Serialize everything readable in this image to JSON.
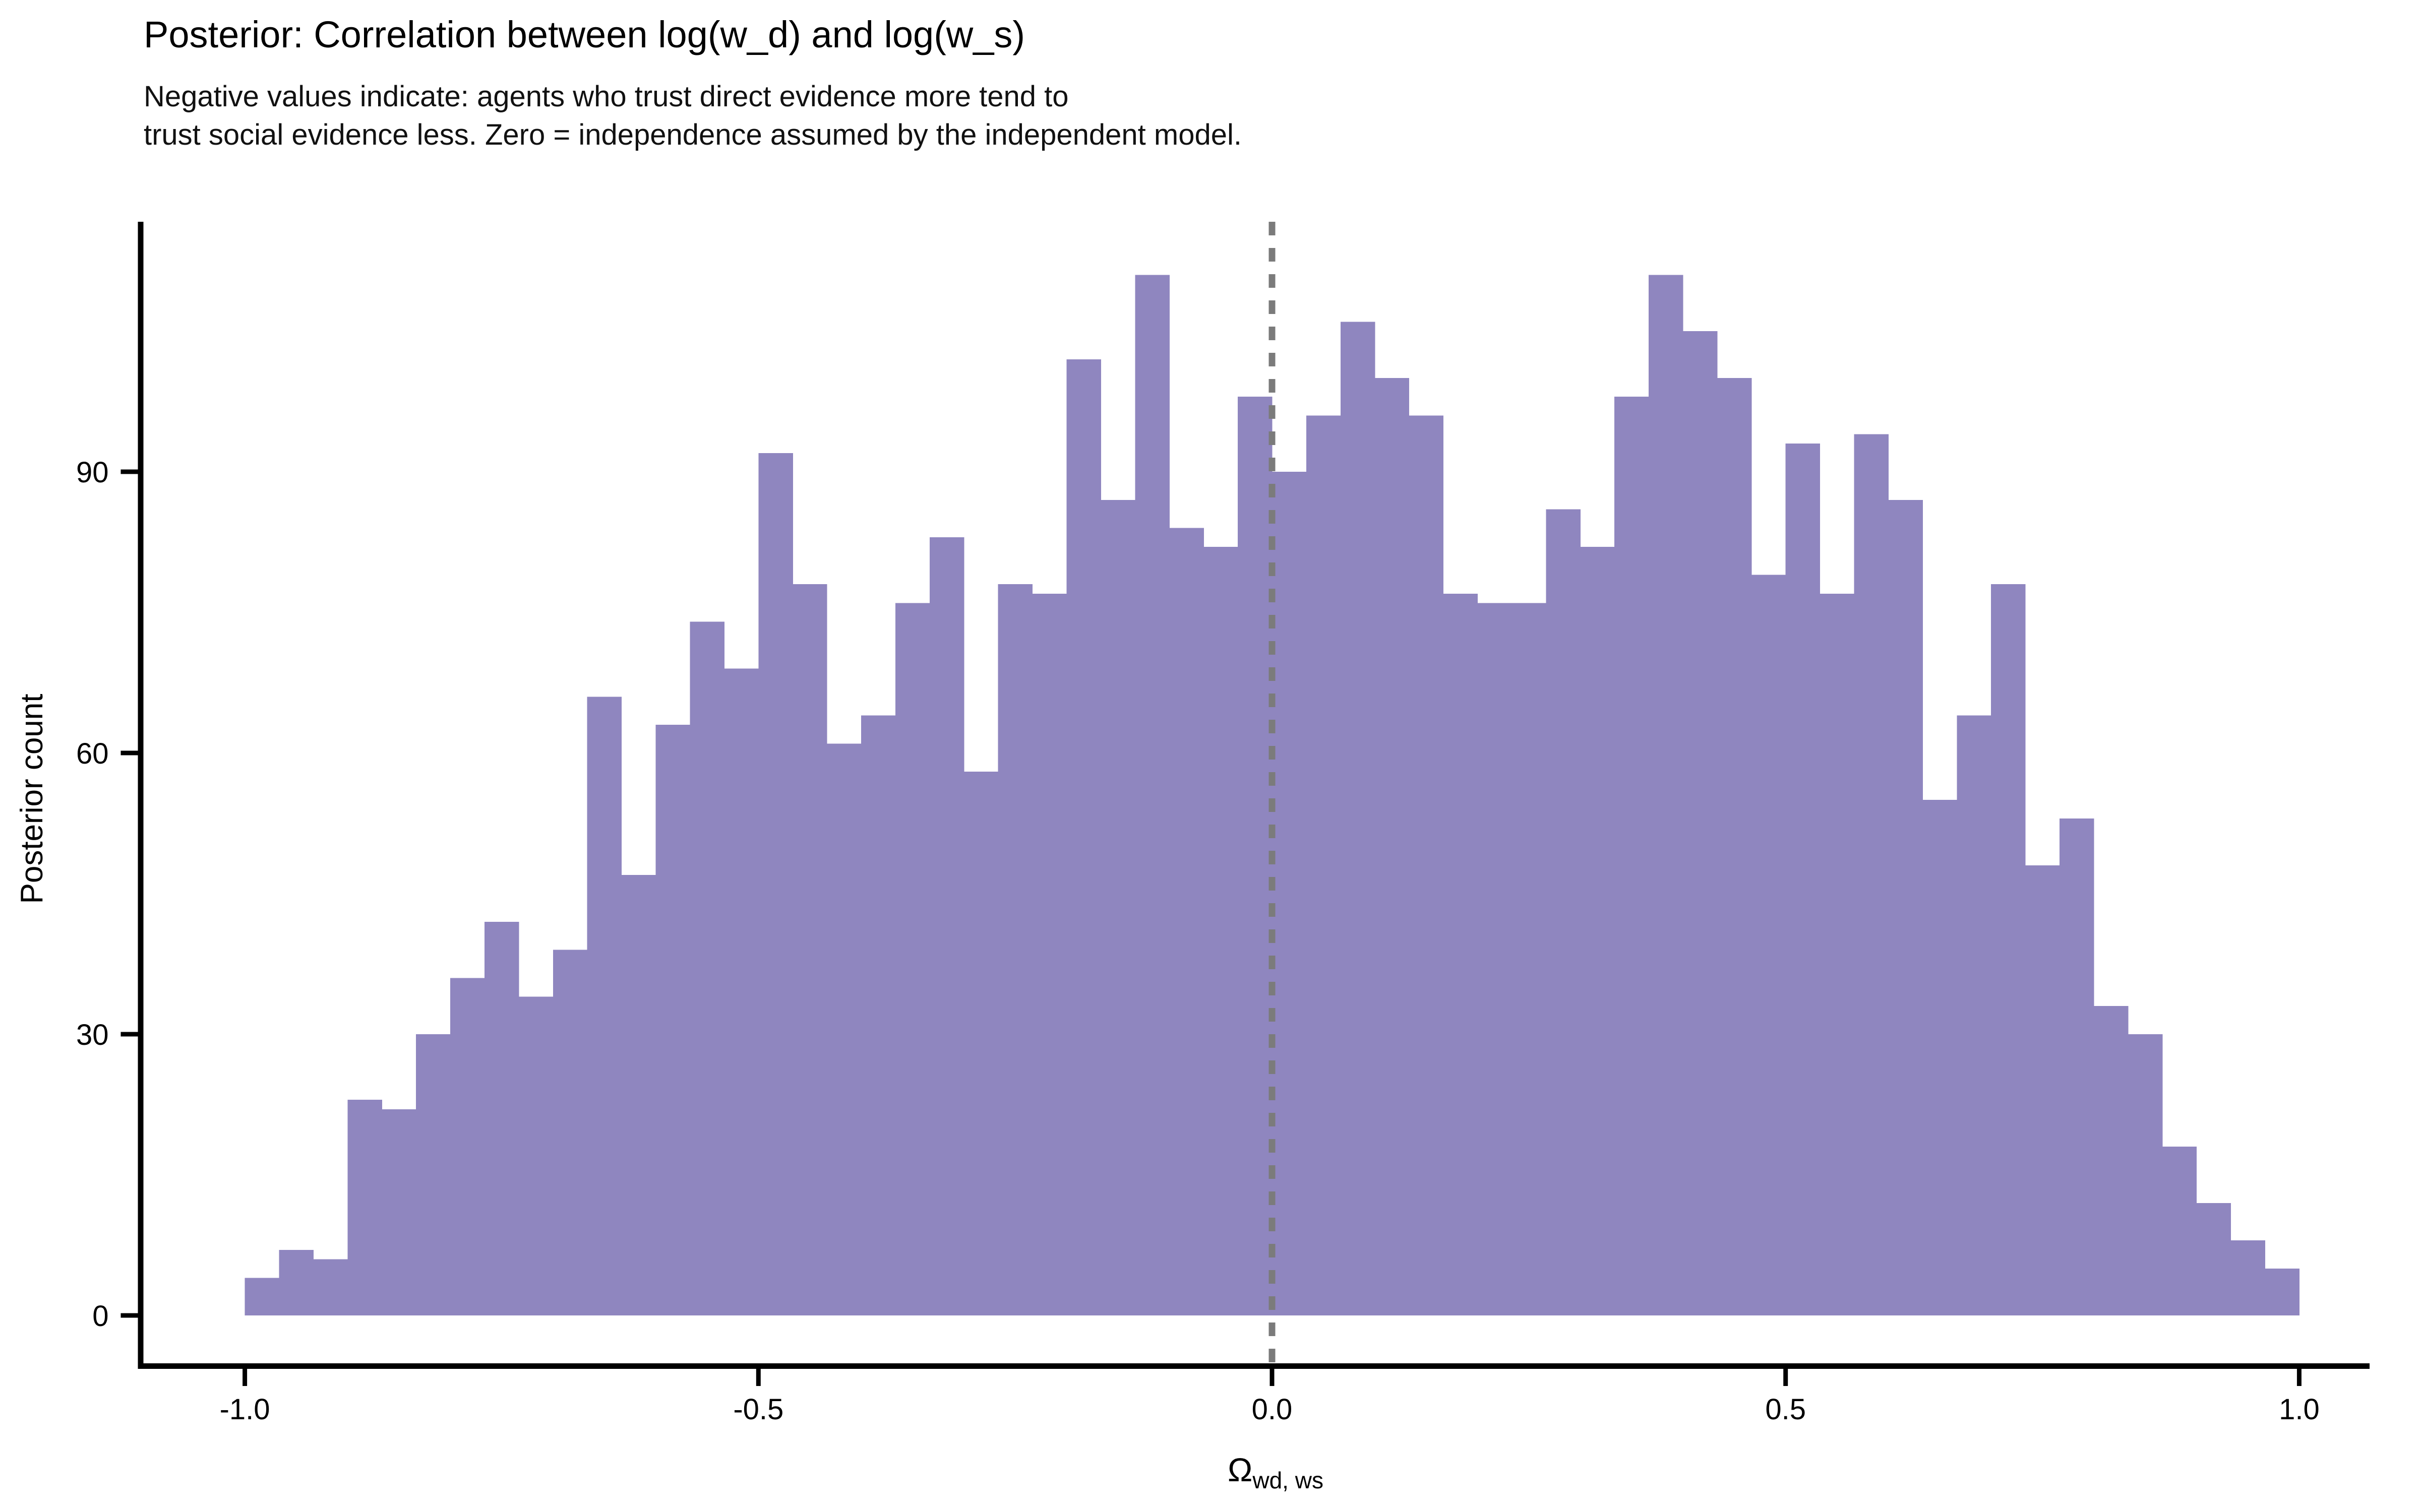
{
  "title": "Posterior: Correlation between log(w_d) and log(w_s)",
  "subtitle": {
    "line1": "Negative values indicate: agents who trust direct evidence more tend to",
    "line2": "trust social evidence less. Zero = independence assumed by the independent model."
  },
  "y_axis": {
    "label": "Posterior count",
    "tick_labels": [
      "0",
      "30",
      "60",
      "90"
    ],
    "tick_values": [
      0,
      30,
      60,
      90
    ]
  },
  "x_axis": {
    "label_base": "Ω",
    "label_subscript": "wd, ws",
    "tick_labels": [
      "-1.0",
      "-0.5",
      "0.0",
      "0.5",
      "1.0"
    ],
    "tick_values": [
      -1.0,
      -0.5,
      0.0,
      0.5,
      1.0
    ]
  },
  "reference_line": {
    "x": 0.0,
    "style": "dashed",
    "color": "#7b7b7b"
  },
  "colors": {
    "bar_fill": "#8f86bf",
    "axis": "#000000",
    "text": "#000000",
    "background": "#ffffff"
  },
  "chart_data": {
    "type": "bar",
    "subtype": "histogram",
    "title": "Posterior: Correlation between log(w_d) and log(w_s)",
    "subtitle": "Negative values indicate: agents who trust direct evidence more tend to trust social evidence less. Zero = independence assumed by the independent model.",
    "xlabel": "Ω_wd, ws",
    "ylabel": "Posterior count",
    "bin_start": -1.0,
    "bin_width": 0.0333333,
    "n_bins": 60,
    "counts": [
      4,
      7,
      6,
      23,
      22,
      30,
      36,
      42,
      34,
      39,
      66,
      47,
      63,
      74,
      69,
      92,
      78,
      61,
      64,
      76,
      83,
      58,
      78,
      77,
      102,
      87,
      111,
      84,
      82,
      98,
      90,
      96,
      106,
      100,
      96,
      77,
      76,
      76,
      86,
      82,
      98,
      111,
      105,
      100,
      79,
      93,
      77,
      94,
      87,
      55,
      64,
      78,
      48,
      53,
      33,
      30,
      18,
      12,
      8,
      5
    ],
    "xlim": [
      -1.12,
      1.12
    ],
    "ylim": [
      0,
      116
    ],
    "grid": false,
    "legend": "none",
    "annotations": [
      {
        "type": "vline",
        "x": 0.0,
        "style": "dashed",
        "color": "#7b7b7b",
        "meaning": "zero correlation reference (independence)"
      }
    ]
  }
}
